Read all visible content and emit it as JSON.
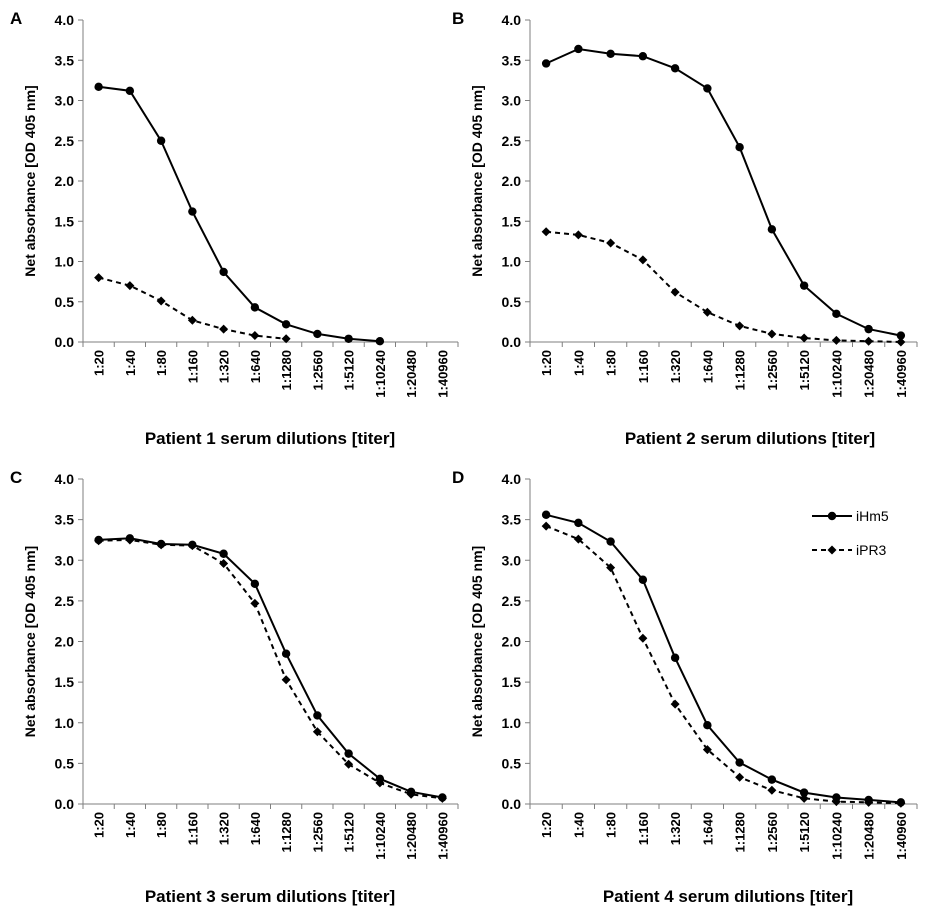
{
  "chart_data": [
    {
      "type": "line",
      "panel": "A",
      "categories": [
        "1:20",
        "1:40",
        "1:80",
        "1:160",
        "1:320",
        "1:640",
        "1:1280",
        "1:2560",
        "1:5120",
        "1:10240",
        "1:20480",
        "1:40960"
      ],
      "xlabel": "Patient 1 serum dilutions [titer]",
      "ylabel": "Net absorbance [OD 405 nm]",
      "ylim": [
        0,
        4.0
      ],
      "yticks": [
        "0.0",
        "0.5",
        "1.0",
        "1.5",
        "2.0",
        "2.5",
        "3.0",
        "3.5",
        "4.0"
      ],
      "grid": false,
      "series": [
        {
          "name": "iHm5",
          "style": "solid",
          "marker": "circle",
          "values": [
            3.17,
            3.12,
            2.5,
            1.62,
            0.87,
            0.43,
            0.22,
            0.1,
            0.04,
            0.01,
            null,
            null
          ]
        },
        {
          "name": "iPR3",
          "style": "dashed",
          "marker": "diamond",
          "values": [
            0.8,
            0.7,
            0.51,
            0.27,
            0.16,
            0.08,
            0.04,
            null,
            null,
            null,
            null,
            null
          ]
        }
      ]
    },
    {
      "type": "line",
      "panel": "B",
      "categories": [
        "1:20",
        "1:40",
        "1:80",
        "1:160",
        "1:320",
        "1:640",
        "1:1280",
        "1:2560",
        "1:5120",
        "1:10240",
        "1:20480",
        "1:40960"
      ],
      "xlabel": "Patient 2 serum dilutions [titer]",
      "ylabel": "Net absorbance [OD 405 nm]",
      "ylim": [
        0,
        4.0
      ],
      "yticks": [
        "0.0",
        "0.5",
        "1.0",
        "1.5",
        "2.0",
        "2.5",
        "3.0",
        "3.5",
        "4.0"
      ],
      "grid": false,
      "series": [
        {
          "name": "iHm5",
          "style": "solid",
          "marker": "circle",
          "values": [
            3.46,
            3.64,
            3.58,
            3.55,
            3.4,
            3.15,
            2.42,
            1.4,
            0.7,
            0.35,
            0.16,
            0.08
          ]
        },
        {
          "name": "iPR3",
          "style": "dashed",
          "marker": "diamond",
          "values": [
            1.37,
            1.33,
            1.23,
            1.02,
            0.62,
            0.37,
            0.2,
            0.1,
            0.05,
            0.02,
            0.01,
            0.0
          ]
        }
      ]
    },
    {
      "type": "line",
      "panel": "C",
      "categories": [
        "1:20",
        "1:40",
        "1:80",
        "1:160",
        "1:320",
        "1:640",
        "1:1280",
        "1:2560",
        "1:5120",
        "1:10240",
        "1:20480",
        "1:40960"
      ],
      "xlabel": "Patient 3 serum dilutions [titer]",
      "ylabel": "Net absorbance [OD 405 nm]",
      "ylim": [
        0,
        4.0
      ],
      "yticks": [
        "0.0",
        "0.5",
        "1.0",
        "1.5",
        "2.0",
        "2.5",
        "3.0",
        "3.5",
        "4.0"
      ],
      "grid": false,
      "series": [
        {
          "name": "iHm5",
          "style": "solid",
          "marker": "circle",
          "values": [
            3.25,
            3.27,
            3.2,
            3.19,
            3.08,
            2.71,
            1.85,
            1.09,
            0.62,
            0.31,
            0.15,
            0.08
          ]
        },
        {
          "name": "iPR3",
          "style": "dashed",
          "marker": "diamond",
          "values": [
            3.24,
            3.25,
            3.19,
            3.18,
            2.96,
            2.47,
            1.53,
            0.89,
            0.49,
            0.26,
            0.12,
            0.07
          ]
        }
      ]
    },
    {
      "type": "line",
      "panel": "D",
      "categories": [
        "1:20",
        "1:40",
        "1:80",
        "1:160",
        "1:320",
        "1:640",
        "1:1280",
        "1:2560",
        "1:5120",
        "1:10240",
        "1:20480",
        "1:40960"
      ],
      "xlabel": "Patient 4 serum dilutions [titer]",
      "ylabel": "Net absorbance [OD 405 nm]",
      "ylim": [
        0,
        4.0
      ],
      "yticks": [
        "0.0",
        "0.5",
        "1.0",
        "1.5",
        "2.0",
        "2.5",
        "3.0",
        "3.5",
        "4.0"
      ],
      "grid": false,
      "legend": {
        "placement": "top-right",
        "entries": [
          "iHm5",
          "iPR3"
        ]
      },
      "series": [
        {
          "name": "iHm5",
          "style": "solid",
          "marker": "circle",
          "values": [
            3.56,
            3.46,
            3.23,
            2.76,
            1.8,
            0.97,
            0.51,
            0.3,
            0.14,
            0.08,
            0.05,
            0.02
          ]
        },
        {
          "name": "iPR3",
          "style": "dashed",
          "marker": "diamond",
          "values": [
            3.42,
            3.26,
            2.91,
            2.04,
            1.23,
            0.67,
            0.33,
            0.17,
            0.07,
            0.03,
            0.02,
            0.01
          ]
        }
      ]
    }
  ]
}
